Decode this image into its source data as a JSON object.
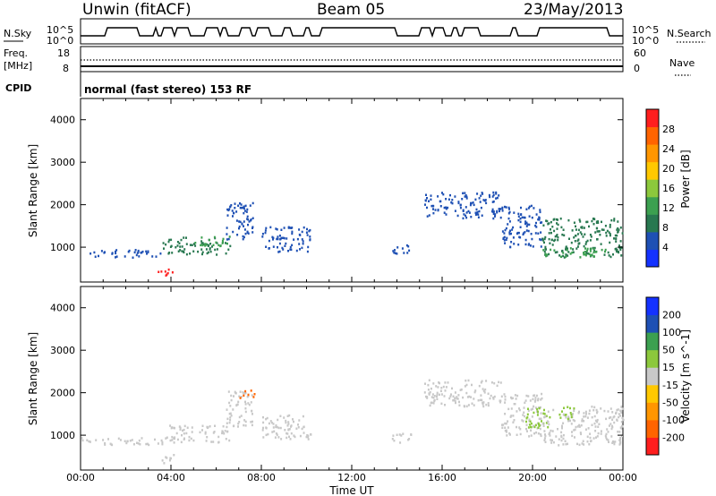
{
  "header": {
    "station": "Unwin (fitACF)",
    "beam": "Beam 05",
    "date": "23/May/2013"
  },
  "top_panel": {
    "nsky_label": "N.Sky",
    "nsearch_label": "N.Search",
    "left_ticks": [
      "10^5",
      "10^0"
    ],
    "right_ticks": [
      "10^5",
      "10^0"
    ]
  },
  "freq_panel": {
    "freq_label_1": "Freq.",
    "freq_label_2": "[MHz]",
    "nave_label": "Nave",
    "left_ticks": [
      "18",
      "8"
    ],
    "right_ticks": [
      "60",
      "0"
    ],
    "cpid_label": "CPID",
    "cpid_text": "normal (fast stereo) 153 RF"
  },
  "colors": {
    "power_scale": [
      "#1432ff",
      "#1e50b4",
      "#287850",
      "#3ca050",
      "#8cc83c",
      "#ffc800",
      "#ff9600",
      "#ff6400",
      "#ff1e1e"
    ],
    "velocity_scale": [
      "#ff1e1e",
      "#ff6400",
      "#ff9600",
      "#ffc800",
      "#c8c8c8",
      "#8cc83c",
      "#3ca050",
      "#1e50b4",
      "#1432ff"
    ],
    "nsky_line": "#000000"
  },
  "chart_data": [
    {
      "type": "heatmap",
      "title": "Power",
      "xlabel": "Time UT",
      "ylabel": "Slant Range [km]",
      "x_ticks": [
        "00:00",
        "04:00",
        "08:00",
        "12:00",
        "16:00",
        "20:00",
        "00:00"
      ],
      "y_ticks": [
        "1000",
        "2000",
        "3000",
        "4000"
      ],
      "xlim": [
        0,
        24
      ],
      "ylim": [
        180,
        4500
      ],
      "colorbar_label": "Power [dB]",
      "colorbar_ticks": [
        "4",
        "8",
        "12",
        "16",
        "20",
        "24",
        "28"
      ],
      "colorbar_range": [
        0,
        32
      ],
      "regions": [
        {
          "t_start": 0.0,
          "t_end": 3.6,
          "range_start": 780,
          "range_end": 960,
          "level": 1
        },
        {
          "t_start": 3.4,
          "t_end": 4.1,
          "range_start": 350,
          "range_end": 560,
          "level": 8
        },
        {
          "t_start": 3.6,
          "t_end": 6.6,
          "range_start": 850,
          "range_end": 1250,
          "level": 2
        },
        {
          "t_start": 5.0,
          "t_end": 6.6,
          "range_start": 1050,
          "range_end": 1280,
          "level": 3
        },
        {
          "t_start": 6.4,
          "t_end": 7.6,
          "range_start": 1200,
          "range_end": 2050,
          "level": 1
        },
        {
          "t_start": 7.0,
          "t_end": 7.7,
          "range_start": 1900,
          "range_end": 2080,
          "level": 1
        },
        {
          "t_start": 8.0,
          "t_end": 10.2,
          "range_start": 900,
          "range_end": 1500,
          "level": 1
        },
        {
          "t_start": 13.7,
          "t_end": 14.6,
          "range_start": 850,
          "range_end": 1100,
          "level": 1
        },
        {
          "t_start": 15.2,
          "t_end": 18.6,
          "range_start": 1700,
          "range_end": 2320,
          "level": 1
        },
        {
          "t_start": 18.6,
          "t_end": 20.4,
          "range_start": 1000,
          "range_end": 2000,
          "level": 1
        },
        {
          "t_start": 20.4,
          "t_end": 24.0,
          "range_start": 780,
          "range_end": 1700,
          "level": 2
        },
        {
          "t_start": 20.2,
          "t_end": 23.2,
          "range_start": 780,
          "range_end": 1000,
          "level": 3
        }
      ]
    },
    {
      "type": "heatmap",
      "title": "Velocity",
      "xlabel": "Time UT",
      "ylabel": "Slant Range [km]",
      "x_ticks": [
        "00:00",
        "04:00",
        "08:00",
        "12:00",
        "16:00",
        "20:00",
        "00:00"
      ],
      "y_ticks": [
        "1000",
        "2000",
        "3000",
        "4000"
      ],
      "xlim": [
        0,
        24
      ],
      "ylim": [
        180,
        4500
      ],
      "colorbar_label": "Velocity [m s^-1]",
      "colorbar_ticks": [
        "200",
        "100",
        "50",
        "15",
        "-15",
        "-50",
        "-100",
        "-200"
      ],
      "regions": [
        {
          "t_start": 0.0,
          "t_end": 3.6,
          "range_start": 780,
          "range_end": 960,
          "level": 4
        },
        {
          "t_start": 3.4,
          "t_end": 4.1,
          "range_start": 350,
          "range_end": 560,
          "level": 4
        },
        {
          "t_start": 3.6,
          "t_end": 6.6,
          "range_start": 850,
          "range_end": 1250,
          "level": 4
        },
        {
          "t_start": 6.4,
          "t_end": 7.6,
          "range_start": 1200,
          "range_end": 2050,
          "level": 4
        },
        {
          "t_start": 7.0,
          "t_end": 7.7,
          "range_start": 1900,
          "range_end": 2080,
          "level": 1
        },
        {
          "t_start": 8.0,
          "t_end": 10.2,
          "range_start": 900,
          "range_end": 1500,
          "level": 4
        },
        {
          "t_start": 13.7,
          "t_end": 14.6,
          "range_start": 850,
          "range_end": 1100,
          "level": 4
        },
        {
          "t_start": 15.2,
          "t_end": 18.6,
          "range_start": 1700,
          "range_end": 2320,
          "level": 4
        },
        {
          "t_start": 18.6,
          "t_end": 20.4,
          "range_start": 1000,
          "range_end": 2000,
          "level": 4
        },
        {
          "t_start": 19.6,
          "t_end": 20.8,
          "range_start": 1200,
          "range_end": 1700,
          "level": 5
        },
        {
          "t_start": 20.4,
          "t_end": 24.0,
          "range_start": 780,
          "range_end": 1700,
          "level": 4
        },
        {
          "t_start": 21.0,
          "t_end": 21.8,
          "range_start": 1400,
          "range_end": 1700,
          "level": 5
        }
      ]
    }
  ]
}
